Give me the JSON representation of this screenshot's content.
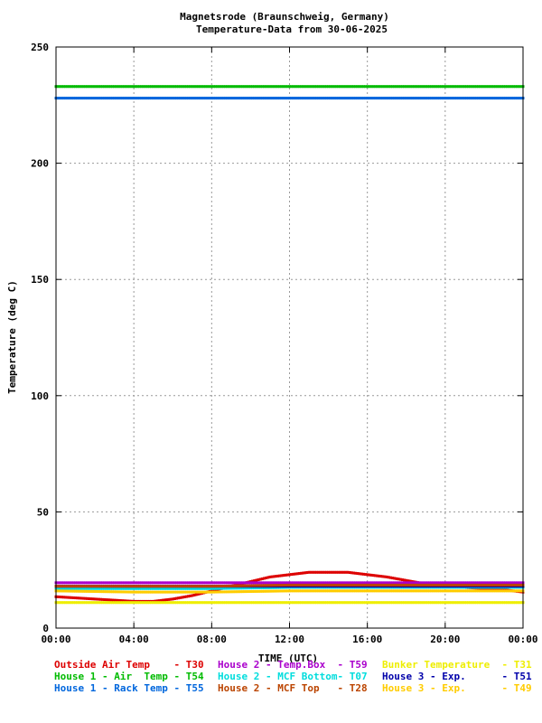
{
  "chart_data": {
    "type": "scatter",
    "title": "Magnetsrode (Braunschweig, Germany)",
    "subtitle": "Temperature-Data from 30-06-2025",
    "xlabel": "TIME (UTC)",
    "ylabel": "Temperature (deg C)",
    "xlim": [
      0,
      24
    ],
    "ylim": [
      0,
      250
    ],
    "x_ticks": [
      "00:00",
      "04:00",
      "08:00",
      "12:00",
      "16:00",
      "20:00",
      "00:00"
    ],
    "y_ticks": [
      "0",
      "50",
      "100",
      "150",
      "200",
      "250"
    ],
    "grid": true,
    "series": [
      {
        "name": "Outside Air Temp",
        "code": "T30",
        "color": "#dd0000",
        "x": [
          0,
          1,
          2,
          3,
          4,
          5,
          6,
          7,
          8,
          9,
          10,
          11,
          12,
          13,
          14,
          15,
          16,
          17,
          18,
          19,
          20,
          21,
          22,
          23,
          24
        ],
        "y": [
          13.5,
          13,
          12.5,
          12,
          11.5,
          11.5,
          12.5,
          14,
          16,
          18,
          20,
          22,
          23,
          24,
          24,
          24,
          23,
          22,
          20.5,
          19,
          18,
          17.5,
          17,
          16.5,
          15.5
        ]
      },
      {
        "name": "House 2 - Temp.Box",
        "code": "T59",
        "color": "#aa00cc",
        "x": [
          0,
          4,
          8,
          12,
          16,
          20,
          24
        ],
        "y": [
          19.5,
          19.5,
          19.5,
          19.5,
          19.5,
          19.5,
          19.5
        ]
      },
      {
        "name": "Bunker Temperature",
        "code": "T31",
        "color": "#eeee00",
        "x": [
          0,
          4,
          8,
          12,
          16,
          20,
          24
        ],
        "y": [
          11,
          11,
          11,
          11,
          11,
          11,
          11
        ]
      },
      {
        "name": "House 1 - Air  Temp",
        "code": "T54",
        "color": "#00bb00",
        "x": [
          0,
          4,
          8,
          12,
          16,
          20,
          24
        ],
        "y": [
          233,
          233,
          233,
          233,
          233,
          233,
          233
        ]
      },
      {
        "name": "House 2 - MCF Bottom",
        "code": "T07",
        "color": "#00dddd",
        "x": [
          0,
          4,
          8,
          12,
          16,
          20,
          24
        ],
        "y": [
          17,
          17,
          17,
          17.5,
          17.5,
          17.5,
          17.5
        ]
      },
      {
        "name": "House 3 - Exp.",
        "code": "T51",
        "color": "#0000aa",
        "x": [
          0,
          4,
          8,
          12,
          16,
          20,
          24
        ],
        "y": [
          18,
          18,
          18,
          18,
          18,
          18,
          18
        ]
      },
      {
        "name": "House 1 - Rack Temp",
        "code": "T55",
        "color": "#0066dd",
        "x": [
          0,
          4,
          8,
          12,
          16,
          20,
          24
        ],
        "y": [
          228,
          228,
          228,
          228,
          228,
          228,
          228
        ]
      },
      {
        "name": "House 2 - MCF Top",
        "code": "T28",
        "color": "#bb4400",
        "x": [
          0,
          4,
          8,
          12,
          16,
          20,
          24
        ],
        "y": [
          18,
          18,
          18,
          18.5,
          18.5,
          18.5,
          18.5
        ]
      },
      {
        "name": "House 3 - Exp.",
        "code": "T49",
        "color": "#ffcc00",
        "x": [
          0,
          4,
          8,
          12,
          16,
          20,
          24
        ],
        "y": [
          16,
          15.5,
          15.5,
          16,
          16,
          16,
          16
        ]
      }
    ],
    "legend_rows": [
      [
        {
          "text": "Outside Air Temp    - T30",
          "color": "#dd0000"
        },
        {
          "text": "House 2 - Temp.Box  - T59",
          "color": "#aa00cc"
        },
        {
          "text": "Bunker Temperature  - T31",
          "color": "#eeee00"
        }
      ],
      [
        {
          "text": "House 1 - Air  Temp - T54",
          "color": "#00bb00"
        },
        {
          "text": "House 2 - MCF Bottom- T07",
          "color": "#00dddd"
        },
        {
          "text": "House 3 - Exp.      - T51",
          "color": "#0000aa"
        }
      ],
      [
        {
          "text": "House 1 - Rack Temp - T55",
          "color": "#0066dd"
        },
        {
          "text": "House 2 - MCF Top   - T28",
          "color": "#bb4400"
        },
        {
          "text": "House 3 - Exp.      - T49",
          "color": "#ffcc00"
        }
      ]
    ],
    "legend_position": "bottom"
  }
}
